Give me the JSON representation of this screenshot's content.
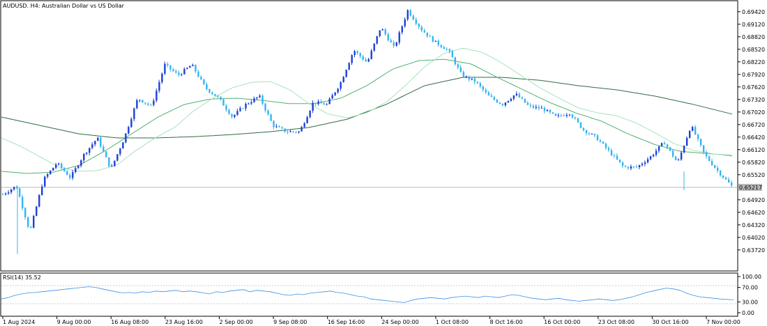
{
  "header": {
    "symbol": "AUDUSD.",
    "timeframe": "H4:",
    "description": "Australian Dollar vs US Dollar"
  },
  "rsi_panel": {
    "label": "RSI(14) 35.52",
    "levels": [
      "100.00",
      "70.00",
      "30.00",
      "0.00"
    ]
  },
  "colors": {
    "bull": "#1B3FD6",
    "bear": "#34B4F2",
    "ma_fast": "#A7E2BF",
    "ma_mid": "#4FB06E",
    "ma_slow": "#2F6B45",
    "rsi": "#3A8FE6",
    "current_price_line": "#B8B8B8"
  },
  "chart_data": {
    "type": "candlestick",
    "title": "AUDUSD., H4: Australian Dollar vs US Dollar",
    "ylim": [
      0.635,
      0.6955
    ],
    "y_ticks": [
      "0.69420",
      "0.69120",
      "0.68820",
      "0.68520",
      "0.68220",
      "0.67920",
      "0.67620",
      "0.67320",
      "0.67020",
      "0.66720",
      "0.66420",
      "0.66120",
      "0.65820",
      "0.65520",
      "0.65217",
      "0.64920",
      "0.64620",
      "0.64320",
      "0.64020",
      "0.63720"
    ],
    "x_labels": [
      "1 Aug 2024",
      "9 Aug 00:00",
      "16 Aug 08:00",
      "23 Aug 16:00",
      "2 Sep 00:00",
      "9 Sep 08:00",
      "16 Sep 16:00",
      "24 Sep 00:00",
      "1 Oct 08:00",
      "8 Oct 16:00",
      "16 Oct 00:00",
      "23 Oct 08:00",
      "30 Oct 16:00",
      "7 Nov 00:00"
    ],
    "current_price": "0.65217",
    "price_path": [
      0.6505,
      0.6525,
      0.6415,
      0.654,
      0.658,
      0.6545,
      0.66,
      0.664,
      0.6565,
      0.664,
      0.6735,
      0.6715,
      0.6815,
      0.679,
      0.6815,
      0.676,
      0.6735,
      0.669,
      0.672,
      0.674,
      0.667,
      0.6655,
      0.6655,
      0.6725,
      0.672,
      0.677,
      0.685,
      0.682,
      0.6905,
      0.6855,
      0.6945,
      0.69,
      0.687,
      0.685,
      0.679,
      0.6775,
      0.674,
      0.672,
      0.6745,
      0.6715,
      0.671,
      0.669,
      0.67,
      0.666,
      0.664,
      0.6605,
      0.657,
      0.657,
      0.6595,
      0.663,
      0.658,
      0.667,
      0.66,
      0.656,
      0.6525
    ],
    "ma_fast_path": [
      0.664,
      0.662,
      0.6595,
      0.657,
      0.656,
      0.6562,
      0.6575,
      0.661,
      0.664,
      0.6665,
      0.6705,
      0.6735,
      0.676,
      0.6773,
      0.6775,
      0.6755,
      0.6722,
      0.6697,
      0.6688,
      0.67,
      0.6725,
      0.6765,
      0.681,
      0.6842,
      0.6855,
      0.6845,
      0.682,
      0.679,
      0.676,
      0.6735,
      0.6712,
      0.67,
      0.6693,
      0.6676,
      0.6652,
      0.6626,
      0.661,
      0.6602,
      0.6596
    ],
    "ma_mid_path": [
      0.656,
      0.6555,
      0.6558,
      0.6575,
      0.661,
      0.665,
      0.669,
      0.672,
      0.6733,
      0.6735,
      0.673,
      0.6722,
      0.6722,
      0.6735,
      0.6765,
      0.6805,
      0.6825,
      0.6828,
      0.6817,
      0.6785,
      0.6755,
      0.6725,
      0.67,
      0.668,
      0.665,
      0.6625,
      0.6608,
      0.6603,
      0.6598
    ],
    "ma_slow_path": [
      0.669,
      0.667,
      0.665,
      0.664,
      0.664,
      0.6643,
      0.6648,
      0.6655,
      0.6665,
      0.6685,
      0.672,
      0.6765,
      0.6785,
      0.6785,
      0.6778,
      0.6765,
      0.6755,
      0.674,
      0.672,
      0.6697
    ],
    "rsi_path": [
      38,
      42,
      48,
      52,
      55,
      56,
      58,
      60,
      62,
      64,
      66,
      68,
      70,
      72,
      70,
      66,
      62,
      58,
      55,
      56,
      54,
      58,
      56,
      60,
      58,
      60,
      62,
      58,
      60,
      58,
      55,
      52,
      58,
      56,
      60,
      62,
      64,
      58,
      62,
      60,
      58,
      54,
      50,
      48,
      52,
      50,
      54,
      56,
      58,
      60,
      56,
      54,
      50,
      46,
      44,
      38,
      36,
      34,
      32,
      30,
      28,
      34,
      38,
      40,
      42,
      40,
      38,
      42,
      44,
      46,
      44,
      42,
      46,
      44,
      42,
      46,
      50,
      48,
      44,
      40,
      38,
      36,
      38,
      40,
      36,
      34,
      32,
      34,
      36,
      38,
      36,
      34,
      36,
      40,
      44,
      50,
      56,
      60,
      64,
      68,
      66,
      62,
      54,
      48,
      44,
      42,
      40,
      38,
      37,
      35.5
    ]
  }
}
